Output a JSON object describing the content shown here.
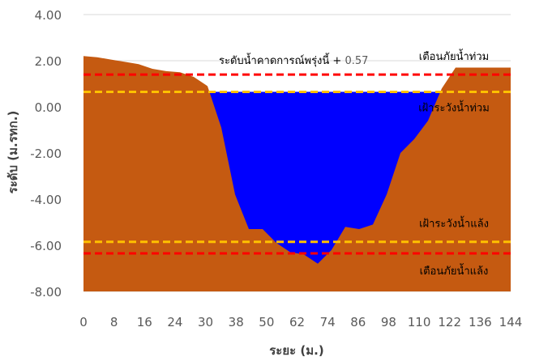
{
  "chart_data": {
    "type": "area",
    "xlabel": "ระยะ (ม.)",
    "ylabel": "ระดับ (ม.รทก.)",
    "x_ticks": [
      "0",
      "8",
      "16",
      "24",
      "30",
      "38",
      "50",
      "62",
      "74",
      "86",
      "98",
      "110",
      "122",
      "136",
      "144"
    ],
    "ylim": [
      -8,
      4
    ],
    "y_ticks": [
      4,
      2,
      0,
      -2,
      -4,
      -6,
      -8
    ],
    "y_tick_labels": [
      "4.00",
      "2.00",
      "0.00",
      "-2.00",
      "-4.00",
      "-6.00",
      "-8.00"
    ],
    "grid": true,
    "ground_profile": {
      "x_index": [
        0,
        1,
        2,
        3,
        4,
        5,
        6,
        7,
        8,
        9,
        10,
        11,
        12,
        13,
        14,
        15,
        16,
        17,
        18,
        19,
        20,
        21,
        22,
        23,
        24,
        25,
        26,
        27,
        28,
        29,
        30,
        31
      ],
      "elevation": [
        2.2,
        2.15,
        2.05,
        1.95,
        1.85,
        1.65,
        1.55,
        1.5,
        1.3,
        0.9,
        -0.9,
        -3.8,
        -5.3,
        -5.3,
        -5.9,
        -6.3,
        -6.4,
        -6.8,
        -6.2,
        -5.2,
        -5.3,
        -5.1,
        -3.8,
        -2.0,
        -1.4,
        -0.6,
        0.8,
        1.7,
        1.7,
        1.7,
        1.7,
        1.7
      ],
      "color": "#C55A11"
    },
    "water_level": {
      "value": 0.65,
      "color": "#0000FF"
    },
    "reference_lines": [
      {
        "value": 1.4,
        "label": "เตือนภัยน้ำท่วม",
        "color": "#FF0000"
      },
      {
        "value": 0.65,
        "label": "เฝ้าระวังน้ำท่วม",
        "color": "#FFC000"
      },
      {
        "value": -5.85,
        "label": "เฝ้าระวังน้ำแล้ง",
        "color": "#FFC000"
      },
      {
        "value": -6.35,
        "label": "เตือนภัยน้ำแล้ง",
        "color": "#FF0000"
      }
    ],
    "forecast_annotation": {
      "text": "ระดับน้ำคาดการณ์พรุ่งนี้ + ",
      "value": "0.57"
    }
  }
}
